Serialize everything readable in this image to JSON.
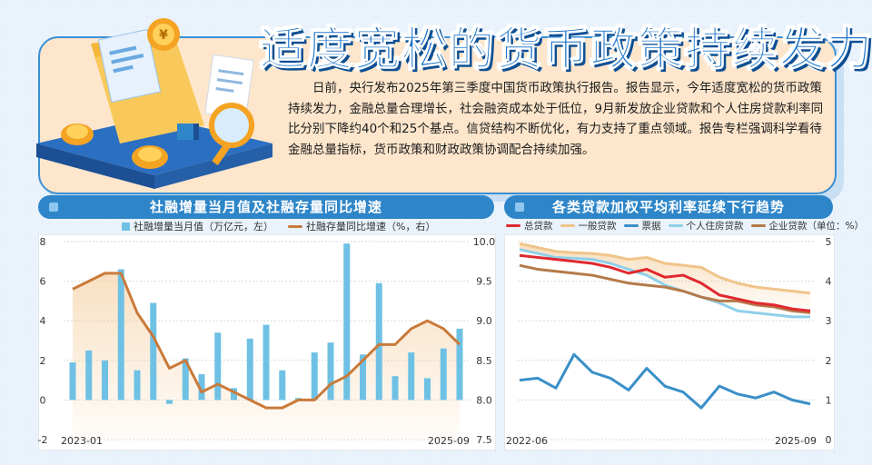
{
  "header": {
    "title": "适度宽松的货币政策持续发力",
    "intro": "日前，央行发布2025年第三季度中国货币政策执行报告。报告显示，今年适度宽松的货币政策持续发力，金融总量合理增长，社会融资成本处于低位，9月新发放企业贷款和个人住房贷款利率同比分别下降约40个和25个基点。信贷结构不断优化，有力支持了重点领域。报告专栏强调科学看待金融总量指标，货币政策和财政政策协调配合持续加强。"
  },
  "colors": {
    "title_blue": "#1d75c9",
    "panel_blue": "#2e86c9",
    "bar_blue": "#6ec1e4",
    "line_brown": "#c97a3a",
    "red": "#e0282e",
    "tan": "#f0c48a",
    "deep_blue": "#3a8fc8",
    "light_blue": "#8fd0ea",
    "brown": "#b47a4a"
  },
  "hero_icons": [
    "folder-icon",
    "coin-icon",
    "document-icon",
    "magnifier-icon",
    "chart-icon"
  ],
  "chart_data": [
    {
      "type": "bar",
      "title": "社融增量当月值及社融存量同比增速",
      "legend": [
        "社融增量当月值（万亿元，左）",
        "社融存量同比增速（%，右）"
      ],
      "x_start_label": "2023-01",
      "x_end_label": "2025-09",
      "y_left": {
        "min": -2,
        "max": 8,
        "ticks": [
          -2,
          0,
          2,
          4,
          6,
          8
        ]
      },
      "y_right": {
        "min": 7.5,
        "max": 10.0,
        "ticks": [
          "7.5",
          "8.0",
          "8.5",
          "9.0",
          "9.5",
          "10.0"
        ]
      },
      "series": [
        {
          "name": "社融增量当月值（万亿元，左）",
          "kind": "bar",
          "values": [
            1.9,
            2.5,
            2.0,
            6.6,
            1.5,
            4.9,
            -0.2,
            2.1,
            1.3,
            3.4,
            0.6,
            3.1,
            3.8,
            1.5,
            0.1,
            2.4,
            2.9,
            7.9,
            2.3,
            5.9,
            1.2,
            2.4,
            1.1,
            2.6,
            3.6
          ]
        },
        {
          "name": "社融存量同比增速（%，右）",
          "kind": "line",
          "values": [
            9.4,
            9.5,
            9.6,
            9.6,
            9.1,
            8.8,
            8.4,
            8.5,
            8.1,
            8.2,
            8.1,
            8.0,
            7.9,
            7.9,
            8.0,
            8.0,
            8.2,
            8.3,
            8.5,
            8.7,
            8.7,
            8.9,
            9.0,
            8.9,
            8.7
          ]
        }
      ]
    },
    {
      "type": "line",
      "title": "各类贷款加权平均利率延续下行趋势",
      "legend": [
        "总贷款",
        "一般贷款",
        "票据",
        "个人住房贷款",
        "企业贷款（单位：%）"
      ],
      "x_start_label": "2022-06",
      "x_end_label": "2025-09",
      "ylim": [
        0,
        5
      ],
      "y_ticks": [
        0,
        1,
        2,
        3,
        4,
        5
      ],
      "series": [
        {
          "name": "总贷款",
          "values": [
            4.65,
            4.6,
            4.55,
            4.5,
            4.45,
            4.35,
            4.2,
            4.3,
            4.1,
            4.15,
            3.95,
            3.65,
            3.55,
            3.45,
            3.4,
            3.3,
            3.25
          ]
        },
        {
          "name": "一般贷款",
          "values": [
            4.95,
            4.85,
            4.75,
            4.72,
            4.7,
            4.65,
            4.55,
            4.6,
            4.45,
            4.4,
            4.35,
            4.1,
            3.95,
            3.85,
            3.8,
            3.75,
            3.7
          ]
        },
        {
          "name": "票据",
          "values": [
            1.5,
            1.55,
            1.3,
            2.15,
            1.7,
            1.55,
            1.25,
            1.8,
            1.35,
            1.2,
            0.8,
            1.35,
            1.15,
            1.05,
            1.2,
            1.0,
            0.9
          ]
        },
        {
          "name": "个人住房贷款",
          "values": [
            4.8,
            4.7,
            4.6,
            4.58,
            4.55,
            4.45,
            4.3,
            4.15,
            3.9,
            3.75,
            3.6,
            3.45,
            3.25,
            3.2,
            3.15,
            3.1,
            3.1
          ]
        },
        {
          "name": "企业贷款",
          "values": [
            4.4,
            4.3,
            4.25,
            4.2,
            4.15,
            4.05,
            3.95,
            3.9,
            3.85,
            3.75,
            3.6,
            3.5,
            3.5,
            3.4,
            3.35,
            3.25,
            3.2
          ]
        }
      ]
    }
  ]
}
